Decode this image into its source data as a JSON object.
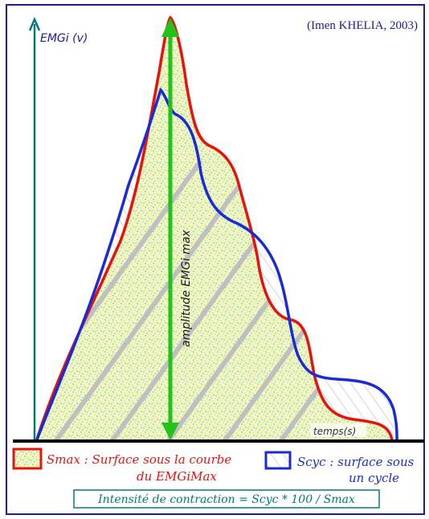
{
  "citation": "(Imen KHELIA, 2003)",
  "y_axis_label": "EMGi (v)",
  "amplitude_label": "amplitude EMGi max",
  "time_label": "temps(s)",
  "legend": {
    "smax_line1": "Smax : Surface sous la courbe",
    "smax_line2": "du EMGiMax",
    "scyc_line1": "Scyc : surface sous",
    "scyc_line2": "un cycle"
  },
  "formula": "Intensité de contraction = Scyc * 100 / Smax",
  "colors": {
    "frame": "#1a1aa6",
    "axis": "#007a74",
    "amplitude_arrow": "#22c21a",
    "smax_curve": "#e8120c",
    "scyc_curve": "#1a2bd6",
    "baseline": "#000000",
    "stipple_yellow": "#f2f25a",
    "stipple_cyan": "#6fd6e8",
    "hatch": "#b8b8b8"
  }
}
